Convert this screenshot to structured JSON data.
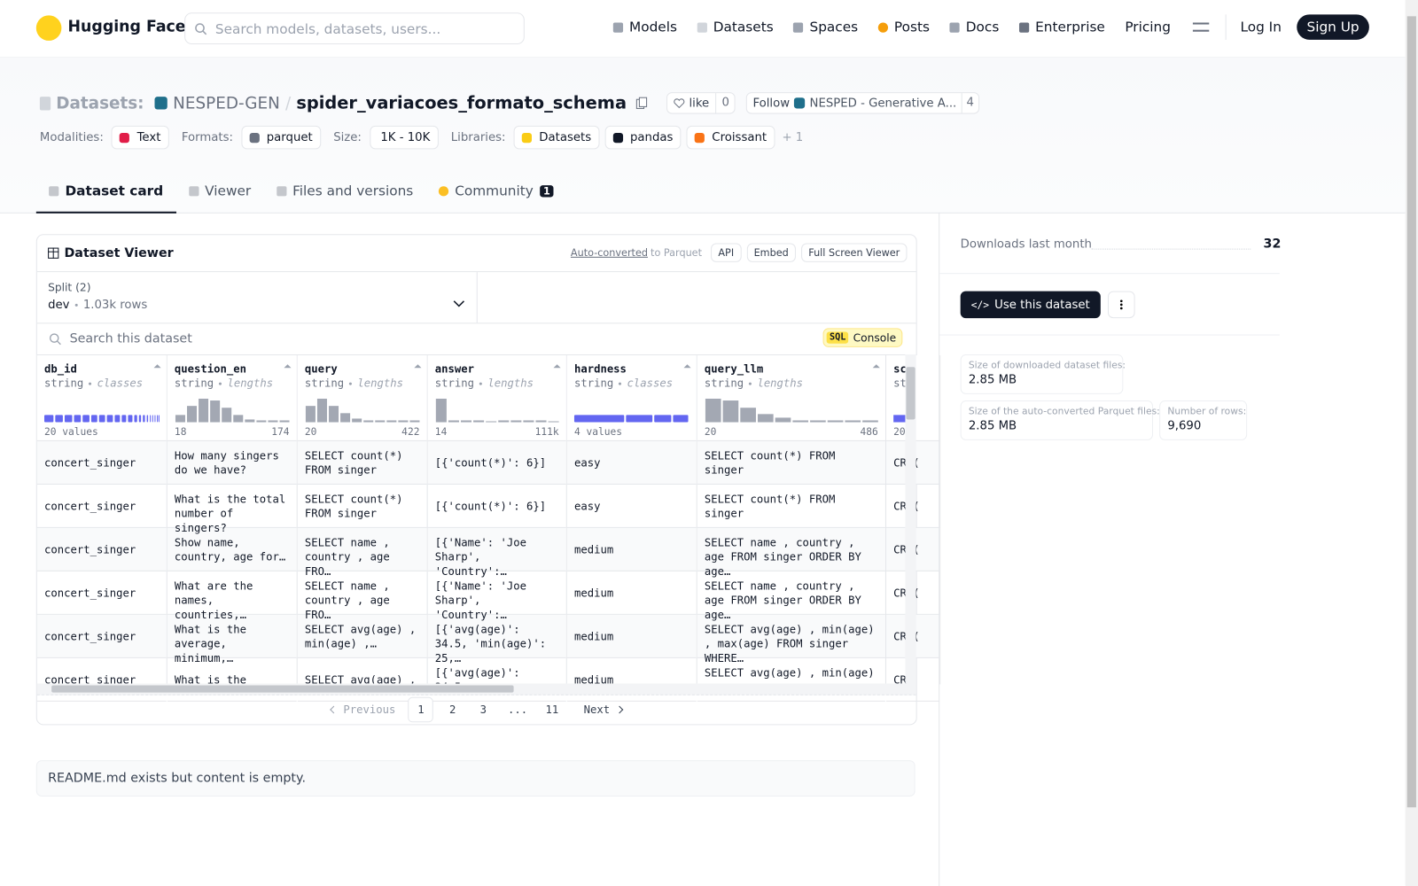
{
  "nav": {
    "logo": "Hugging Face",
    "search_placeholder": "Search models, datasets, users...",
    "links": [
      "Models",
      "Datasets",
      "Spaces",
      "Posts",
      "Docs",
      "Enterprise",
      "Pricing"
    ],
    "login": "Log In",
    "signup": "Sign Up"
  },
  "header": {
    "prefix": "Datasets:",
    "org": "NESPED-GEN",
    "separator": "/",
    "name": "spider_variacoes_formato_schema",
    "like": "like",
    "like_count": 0,
    "follow": "Follow",
    "follow_org": "NESPED - Generative A...",
    "followers": 4,
    "tags": [
      {
        "label": "Modalities:",
        "items": [
          "Text"
        ]
      },
      {
        "label": "Formats:",
        "items": [
          "parquet"
        ]
      },
      {
        "label": "Size:",
        "items": [
          "1K - 10K"
        ]
      },
      {
        "label": "Libraries:",
        "items": [
          "Datasets",
          "pandas",
          "Croissant"
        ]
      }
    ],
    "more_libraries": "+ 1"
  },
  "tabs": {
    "items": [
      "Dataset card",
      "Viewer",
      "Files and versions",
      "Community"
    ],
    "community_count": 1
  },
  "viewer": {
    "title": "Dataset Viewer",
    "auto": "Auto-converted",
    "auto_suffix": "to Parquet",
    "api": "API",
    "embed": "Embed",
    "fullscreen": "Full Screen Viewer",
    "split_label": "Split (2)",
    "split": "dev",
    "split_rows": "1.03k rows",
    "search": "Search this dataset",
    "sql": "SQL",
    "console": "Console",
    "columns": [
      {
        "name": "db_id",
        "type": "string",
        "kind": "classes",
        "summary": "20 values",
        "classes": [
          14,
          12,
          12,
          11,
          11,
          10,
          10,
          10,
          9,
          8,
          8,
          6,
          5,
          5,
          4,
          3,
          3,
          3,
          2,
          2
        ]
      },
      {
        "name": "question_en",
        "type": "string",
        "kind": "lengths",
        "min": 18,
        "max": 174,
        "hist": [
          8,
          18,
          26,
          24,
          16,
          8,
          3,
          2,
          2,
          2
        ]
      },
      {
        "name": "query",
        "type": "string",
        "kind": "lengths",
        "min": 20,
        "max": 422,
        "hist": [
          18,
          26,
          18,
          10,
          4,
          2,
          2,
          2,
          2,
          2
        ]
      },
      {
        "name": "answer",
        "type": "string",
        "kind": "lengths",
        "min": 14,
        "max": "111k",
        "hist": [
          26,
          2,
          2,
          2,
          0,
          2,
          2,
          2,
          2,
          0
        ]
      },
      {
        "name": "hardness",
        "type": "string",
        "kind": "classes",
        "summary": "4 values",
        "classes": [
          55,
          30,
          20,
          18
        ]
      },
      {
        "name": "query_llm",
        "type": "string",
        "kind": "lengths",
        "min": 20,
        "max": 486,
        "hist": [
          26,
          24,
          16,
          9,
          5,
          2,
          2,
          2,
          2,
          2
        ]
      },
      {
        "name": "sc",
        "type": "st",
        "min": 20
      }
    ],
    "rows": [
      [
        "concert_singer",
        "How many singers do we have?",
        "SELECT count(*) FROM singer",
        "[{'count(*)': 6}]",
        "easy",
        "SELECT count(*) FROM singer",
        "CR ("
      ],
      [
        "concert_singer",
        "What is the total number of singers?",
        "SELECT count(*) FROM singer",
        "[{'count(*)': 6}]",
        "easy",
        "SELECT count(*) FROM singer",
        "CR ("
      ],
      [
        "concert_singer",
        "Show name, country, age for…",
        "SELECT name , country , age FRO…",
        "[{'Name': 'Joe Sharp', 'Country':…",
        "medium",
        "SELECT name , country , age FROM singer ORDER BY age…",
        "CR ("
      ],
      [
        "concert_singer",
        "What are the names, countries,…",
        "SELECT name , country , age FRO…",
        "[{'Name': 'Joe Sharp', 'Country':…",
        "medium",
        "SELECT name , country , age FROM singer ORDER BY age…",
        "CR ("
      ],
      [
        "concert_singer",
        "What is the average, minimum,…",
        "SELECT avg(age) , min(age) ,…",
        "[{'avg(age)': 34.5, 'min(age)': 25,…",
        "medium",
        "SELECT avg(age) , min(age) , max(age) FROM singer WHERE…",
        "CR ("
      ],
      [
        "concert_singer",
        "What is the",
        "SELECT avg(age) ,",
        "[{'avg(age)': 34.5,",
        "medium",
        "SELECT avg(age) , min(age) ,",
        "CR"
      ]
    ],
    "pagination": {
      "previous": "Previous",
      "pages": [
        1,
        2,
        3
      ],
      "ellipsis": "...",
      "last": 11,
      "next": "Next"
    }
  },
  "readme": "README.md exists but content is empty.",
  "sidebar": {
    "downloads_label": "Downloads last month",
    "downloads": 32,
    "use": "Use this dataset",
    "sizes": [
      {
        "label": "Size of downloaded dataset files:",
        "value": "2.85 MB"
      },
      {
        "label": "Size of the auto-converted Parquet files:",
        "value": "2.85 MB"
      },
      {
        "label": "Number of rows:",
        "value": "9,690"
      }
    ]
  }
}
